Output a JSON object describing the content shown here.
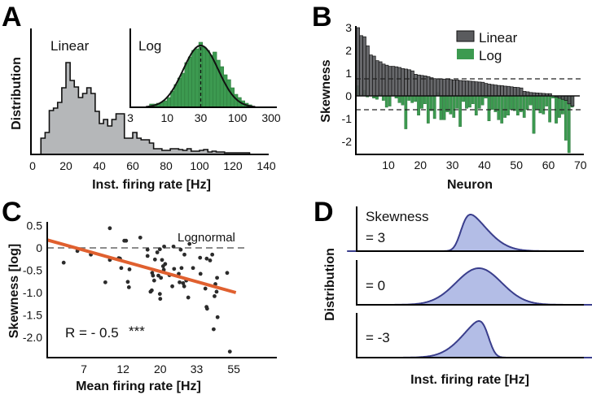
{
  "panels": {
    "a": "A",
    "b": "B",
    "c": "C",
    "d": "D"
  },
  "colors": {
    "gray_hist": "#b5b7b9",
    "green": "#3c9a50",
    "dark_bar": "#5a5b5e",
    "orange": "#e0602f",
    "dist_fill": "#b3bde6",
    "dist_stroke": "#3a3e8c"
  },
  "chart_data": [
    {
      "id": "A",
      "type": "bar",
      "title": "",
      "xlabel": "Inst. firing rate [Hz]",
      "ylabel": "Distribution",
      "annotation": "Linear",
      "xlim": [
        0,
        150
      ],
      "xticks": [
        "0",
        "20",
        "40",
        "60",
        "80",
        "100",
        "120",
        "140"
      ],
      "bin_start": 5,
      "bin_width": 2.5,
      "counts": [
        20,
        27,
        54,
        57,
        64,
        82,
        113,
        91,
        83,
        70,
        75,
        82,
        75,
        53,
        38,
        43,
        35,
        43,
        50,
        50,
        20,
        20,
        27,
        20,
        18,
        18,
        14,
        7,
        7,
        5,
        5,
        7,
        7,
        6,
        5,
        7,
        4,
        4,
        5,
        6,
        3,
        4,
        3,
        3,
        2,
        2,
        2,
        2,
        2,
        2
      ],
      "inset": {
        "type": "bar",
        "annotation": "Log",
        "xscale": "log",
        "xlim": [
          3,
          350
        ],
        "xticks": [
          "3",
          "10",
          "30",
          "100",
          "300"
        ],
        "bin_start_log10": 0.75,
        "bin_width_log10": 0.05,
        "counts": [
          4,
          4,
          5,
          6,
          8,
          12,
          20,
          28,
          36,
          42,
          55,
          62,
          70,
          72,
          80,
          74,
          70,
          64,
          68,
          58,
          50,
          40,
          34,
          24,
          16,
          12,
          8,
          5,
          3
        ],
        "fit": {
          "type": "gaussian",
          "mean_hz": 30,
          "sd_log10": 0.25
        },
        "median_line_hz": 30
      }
    },
    {
      "id": "B",
      "type": "bar",
      "xlabel": "Neuron",
      "ylabel": "Skewness",
      "xlim": [
        0,
        70
      ],
      "ylim": [
        -2.6,
        3.1
      ],
      "xticks": [
        "10",
        "20",
        "30",
        "40",
        "50",
        "60",
        "70"
      ],
      "yticks": [
        "3",
        "2",
        "1",
        "0",
        "-1",
        "-2"
      ],
      "legend": [
        {
          "name": "Linear"
        },
        {
          "name": "Log"
        }
      ],
      "legend_position": "top-right",
      "series": [
        {
          "name": "Linear",
          "values": [
            3.0,
            2.65,
            2.6,
            2.2,
            1.8,
            1.75,
            1.55,
            1.5,
            1.4,
            1.35,
            1.3,
            1.3,
            1.28,
            1.25,
            1.2,
            1.18,
            1.15,
            1.1,
            0.95,
            0.92,
            0.9,
            0.88,
            0.85,
            0.8,
            0.76,
            0.75,
            0.75,
            0.74,
            0.74,
            0.72,
            0.7,
            0.7,
            0.68,
            0.67,
            0.66,
            0.65,
            0.64,
            0.62,
            0.61,
            0.6,
            0.55,
            0.52,
            0.5,
            0.48,
            0.46,
            0.45,
            0.43,
            0.42,
            0.4,
            0.38,
            0.37,
            0.35,
            0.2,
            0.18,
            0.15,
            0.14,
            0.13,
            0.12,
            0.11,
            0.1,
            0.1,
            0.0,
            -0.05,
            -0.1,
            -0.15,
            -0.2,
            -0.35,
            -0.45
          ]
        },
        {
          "name": "Log",
          "values": [
            0.45,
            0.05,
            0.25,
            -0.05,
            0,
            -0.1,
            -0.15,
            0.1,
            -0.2,
            -0.5,
            -0.45,
            0.05,
            -0.1,
            -0.3,
            -0.4,
            -1.45,
            -0.2,
            -0.3,
            -0.25,
            -0.85,
            -0.55,
            -0.35,
            -1.2,
            -0.65,
            -1.0,
            0.15,
            -1.05,
            -1.05,
            -0.7,
            -0.8,
            -0.95,
            -0.55,
            -1.35,
            -0.25,
            -0.55,
            -0.5,
            -0.35,
            -0.85,
            -0.55,
            -0.4,
            -0.1,
            -1.1,
            -0.6,
            -0.7,
            -1.05,
            -1.2,
            -0.95,
            -0.85,
            -0.6,
            -0.65,
            -0.85,
            -0.7,
            -0.95,
            -0.6,
            -0.4,
            -1.65,
            -0.6,
            -0.75,
            -0.8,
            -0.45,
            -1.15,
            -0.1,
            -1.2,
            -0.95,
            -0.8,
            -1.95,
            -2.5,
            -0.5
          ]
        }
      ],
      "mean_lines": {
        "Linear": 0.75,
        "Log": -0.6
      }
    },
    {
      "id": "C",
      "type": "scatter",
      "xlabel": "Mean firing rate [Hz]",
      "ylabel": "Skewness [log]",
      "xscale": "log",
      "xlim": [
        4.2,
        99
      ],
      "ylim": [
        -2.45,
        0.55
      ],
      "xticks": [
        "7",
        "12",
        "20",
        "33",
        "55"
      ],
      "yticks": [
        "0.5",
        "0",
        "-0.5",
        "-1.0",
        "-1.5",
        "-2.0"
      ],
      "reference_line": {
        "y": 0,
        "label": "Lognormal"
      },
      "annotation": {
        "r_text": "R = - 0.5",
        "significance": "***"
      },
      "regression": {
        "x": [
          4.2,
          56.6
        ],
        "y": [
          0.18,
          -1.0
        ]
      },
      "points": [
        [
          5.3,
          -0.33
        ],
        [
          6.4,
          -0.07
        ],
        [
          7.7,
          -0.15
        ],
        [
          9.4,
          -0.77
        ],
        [
          10.0,
          0.44
        ],
        [
          10.0,
          -0.27
        ],
        [
          11.3,
          -0.23
        ],
        [
          11.5,
          -0.24
        ],
        [
          11.7,
          -0.45
        ],
        [
          12.2,
          0.16
        ],
        [
          12.5,
          0.16
        ],
        [
          12.8,
          -0.76
        ],
        [
          13.0,
          -0.88
        ],
        [
          13.1,
          -0.48
        ],
        [
          15.2,
          0.23
        ],
        [
          16.8,
          -0.04
        ],
        [
          16.8,
          -0.18
        ],
        [
          17.5,
          -0.98
        ],
        [
          17.8,
          -0.95
        ],
        [
          17.9,
          -0.56
        ],
        [
          18.1,
          -0.62
        ],
        [
          18.4,
          -0.73
        ],
        [
          18.6,
          -0.26
        ],
        [
          19.2,
          -0.1
        ],
        [
          19.5,
          -0.62
        ],
        [
          19.9,
          -0.03
        ],
        [
          19.9,
          -1.03
        ],
        [
          20.0,
          -1.14
        ],
        [
          20.2,
          -0.67
        ],
        [
          20.5,
          -0.27
        ],
        [
          20.8,
          -0.41
        ],
        [
          21.0,
          -0.49
        ],
        [
          21.1,
          0.03
        ],
        [
          21.4,
          -0.36
        ],
        [
          22.7,
          -0.61
        ],
        [
          23.6,
          -0.86
        ],
        [
          24.0,
          0.03
        ],
        [
          24.2,
          -0.47
        ],
        [
          25.8,
          -0.58
        ],
        [
          26.1,
          -0.77
        ],
        [
          26.5,
          -0.04
        ],
        [
          26.8,
          -0.45
        ],
        [
          27.4,
          -0.79
        ],
        [
          27.9,
          -0.15
        ],
        [
          27.8,
          -0.86
        ],
        [
          28.6,
          -0.73
        ],
        [
          29.4,
          -1.11
        ],
        [
          29.9,
          0.09
        ],
        [
          31.4,
          -0.45
        ],
        [
          34.6,
          -0.22
        ],
        [
          34.8,
          -0.58
        ],
        [
          37.2,
          -0.91
        ],
        [
          37.8,
          -1.32
        ],
        [
          38.1,
          -1.36
        ],
        [
          37.9,
          -0.24
        ],
        [
          39.7,
          -0.28
        ],
        [
          40.9,
          -0.15
        ],
        [
          41.7,
          -1.82
        ],
        [
          42.2,
          -1.08
        ],
        [
          42.7,
          -0.81
        ],
        [
          43.4,
          -0.98
        ],
        [
          43.7,
          -0.67
        ],
        [
          44.0,
          -1.55
        ],
        [
          50.2,
          -0.56
        ],
        [
          52.1,
          -2.32
        ]
      ]
    },
    {
      "id": "D",
      "type": "area",
      "xlabel": "Inst. firing rate [Hz]",
      "ylabel": "Distribution",
      "skew_title": "Skewness",
      "curves": [
        {
          "label": "= 3",
          "skewness": 3
        },
        {
          "label": "= 0",
          "skewness": 0
        },
        {
          "label": "= -3",
          "skewness": -3
        }
      ]
    }
  ]
}
